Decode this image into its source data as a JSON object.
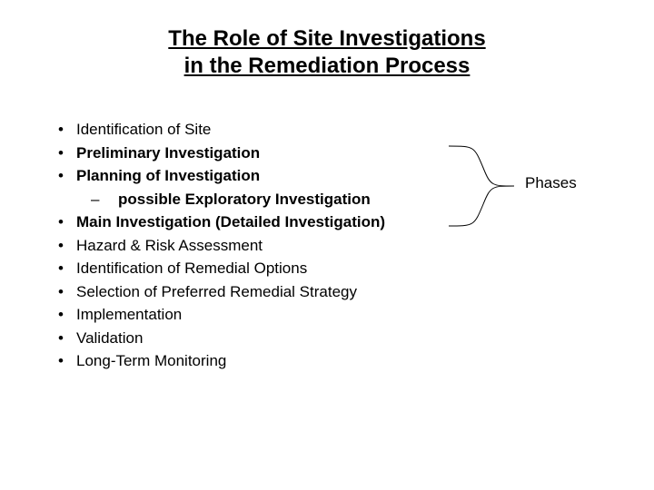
{
  "title_line1": "The Role of Site Investigations",
  "title_line2": "in the Remediation Process",
  "items": [
    {
      "text": "Identification of Site",
      "bold": false
    },
    {
      "text": "Preliminary Investigation",
      "bold": true
    },
    {
      "text": "Planning of Investigation",
      "bold": true
    },
    {
      "text": "possible Exploratory Investigation",
      "bold": true,
      "sub": true
    },
    {
      "text": "Main Investigation  (Detailed Investigation)",
      "bold": true
    },
    {
      "text": "Hazard & Risk Assessment",
      "bold": false
    },
    {
      "text": "Identification of Remedial Options",
      "bold": false
    },
    {
      "text": "Selection of Preferred Remedial Strategy",
      "bold": false
    },
    {
      "text": "Implementation",
      "bold": false
    },
    {
      "text": "Validation",
      "bold": false
    },
    {
      "text": "Long-Term Monitoring",
      "bold": false
    }
  ],
  "annotation_label": "Phases",
  "style": {
    "background_color": "#ffffff",
    "text_color": "#000000",
    "title_fontsize": 24,
    "body_fontsize": 17,
    "brace_stroke": "#000000",
    "brace_stroke_width": 1
  }
}
